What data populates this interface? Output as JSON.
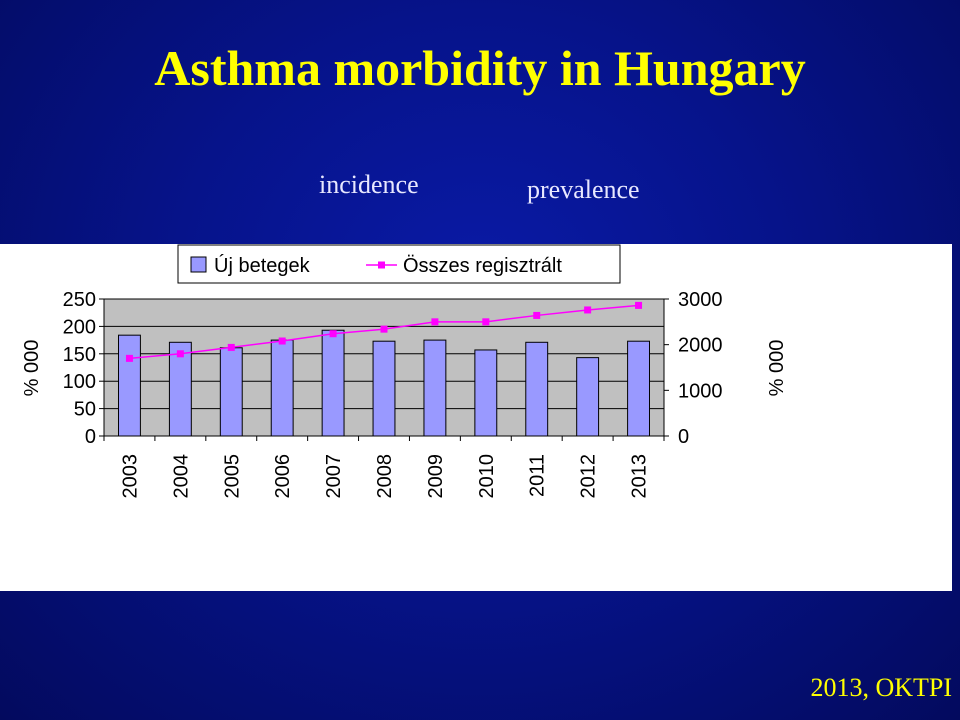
{
  "slide": {
    "title": "Asthma morbidity in Hungary",
    "incidence_label": "incidence",
    "prevalence_label": "prevalence",
    "source": "2013, OKTPI"
  },
  "colors": {
    "background": "#06138a",
    "title": "#ffff00",
    "bar_fill": "#9999ff",
    "line": "#ff00ff",
    "plot_area": "#c0c0c0"
  },
  "chart_data": {
    "type": "bar",
    "categories": [
      "2003",
      "2004",
      "2005",
      "2006",
      "2007",
      "2008",
      "2009",
      "2010",
      "2011",
      "2012",
      "2013"
    ],
    "series": [
      {
        "name": "Új betegek",
        "type": "bar",
        "axis": "left",
        "values": [
          184,
          171,
          161,
          175,
          193,
          173,
          175,
          157,
          171,
          143,
          173
        ]
      },
      {
        "name": "Összes regisztrált",
        "type": "line",
        "axis": "right",
        "values": [
          1700,
          1800,
          1940,
          2080,
          2240,
          2340,
          2500,
          2500,
          2640,
          2760,
          2860
        ]
      }
    ],
    "ylabel": "% 000",
    "y2label": "% 000",
    "ylim": [
      0,
      250
    ],
    "y2lim": [
      0,
      3000
    ],
    "yticks": [
      "0",
      "50",
      "100",
      "150",
      "200",
      "250"
    ],
    "y2ticks": [
      "0",
      "1000",
      "2000",
      "3000"
    ],
    "grid": true,
    "legend_position": "top"
  }
}
